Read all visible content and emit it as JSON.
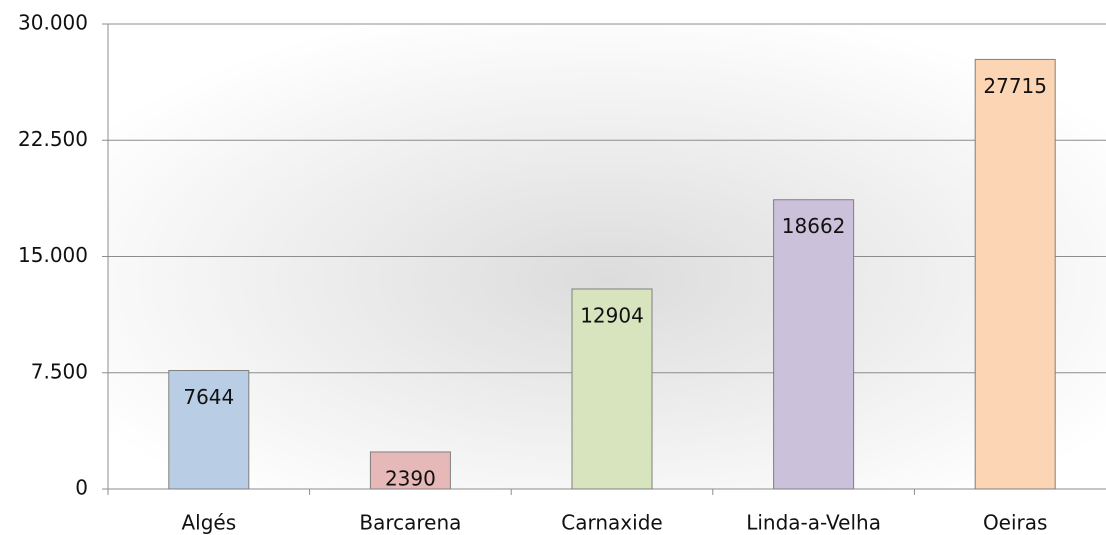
{
  "chart_data": {
    "type": "bar",
    "categories": [
      "Algés",
      "Barcarena",
      "Carnaxide",
      "Linda-a-Velha",
      "Oeiras"
    ],
    "values": [
      7644,
      2390,
      12904,
      18662,
      27715
    ],
    "colors": [
      "#b9cde5",
      "#e6b9b8",
      "#d7e4bd",
      "#ccc1da",
      "#fcd5b5"
    ],
    "ylim": [
      0,
      30000
    ],
    "yticks": [
      0,
      {
        "value": 7500,
        "label": "7.500"
      },
      {
        "value": 15000,
        "label": "15.000"
      },
      {
        "value": 22500,
        "label": "22.500"
      },
      {
        "value": 30000,
        "label": "30.000"
      }
    ],
    "grid": true
  }
}
